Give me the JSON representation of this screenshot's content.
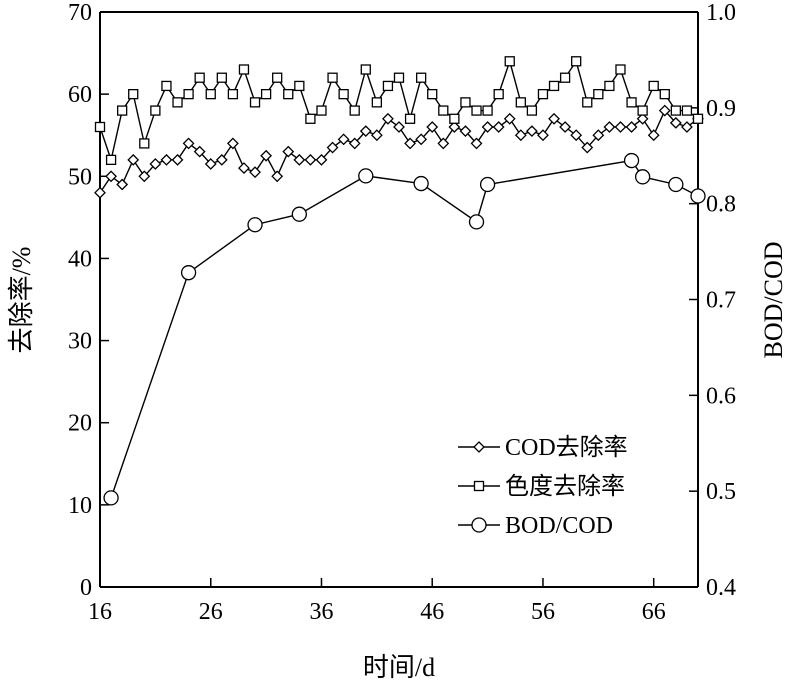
{
  "chart_data": {
    "type": "line",
    "xlabel": "时间/d",
    "ylabel": "去除率/%",
    "y2label": "BOD/COD",
    "xlim": [
      16,
      70
    ],
    "ylim": [
      0,
      70
    ],
    "y2lim": [
      0.4,
      1.0
    ],
    "xticks": [
      "16",
      "26",
      "36",
      "46",
      "56",
      "66"
    ],
    "yticks": [
      "0",
      "10",
      "20",
      "30",
      "40",
      "50",
      "60",
      "70"
    ],
    "y2ticks": [
      "0.4",
      "0.5",
      "0.6",
      "0.7",
      "0.8",
      "0.9",
      "1.0"
    ],
    "legend_position": "lower-right",
    "grid": false,
    "series": [
      {
        "name": "COD去除率",
        "axis": "left",
        "marker": "diamond",
        "points": [
          [
            16,
            48
          ],
          [
            17,
            50
          ],
          [
            18,
            49
          ],
          [
            19,
            52
          ],
          [
            20,
            50
          ],
          [
            21,
            51.5
          ],
          [
            22,
            52
          ],
          [
            23,
            52
          ],
          [
            24,
            54
          ],
          [
            25,
            53
          ],
          [
            26,
            51.5
          ],
          [
            27,
            52
          ],
          [
            28,
            54
          ],
          [
            29,
            51
          ],
          [
            30,
            50.5
          ],
          [
            31,
            52.5
          ],
          [
            32,
            50
          ],
          [
            33,
            53
          ],
          [
            34,
            52
          ],
          [
            35,
            52
          ],
          [
            36,
            52
          ],
          [
            37,
            53.5
          ],
          [
            38,
            54.5
          ],
          [
            39,
            54
          ],
          [
            40,
            55.5
          ],
          [
            41,
            55
          ],
          [
            42,
            57
          ],
          [
            43,
            56
          ],
          [
            44,
            54
          ],
          [
            45,
            54.5
          ],
          [
            46,
            56
          ],
          [
            47,
            54
          ],
          [
            48,
            56
          ],
          [
            49,
            55.5
          ],
          [
            50,
            54
          ],
          [
            51,
            56
          ],
          [
            52,
            56
          ],
          [
            53,
            57
          ],
          [
            54,
            55
          ],
          [
            55,
            55.5
          ],
          [
            56,
            55
          ],
          [
            57,
            57
          ],
          [
            58,
            56
          ],
          [
            59,
            55
          ],
          [
            60,
            53.5
          ],
          [
            61,
            55
          ],
          [
            62,
            56
          ],
          [
            63,
            56
          ],
          [
            64,
            56
          ],
          [
            65,
            57
          ],
          [
            66,
            55
          ],
          [
            67,
            58
          ],
          [
            68,
            56.5
          ],
          [
            69,
            56
          ],
          [
            70,
            57
          ]
        ]
      },
      {
        "name": "色度去除率",
        "axis": "left",
        "marker": "square",
        "points": [
          [
            16,
            56
          ],
          [
            17,
            52
          ],
          [
            18,
            58
          ],
          [
            19,
            60
          ],
          [
            20,
            54
          ],
          [
            21,
            58
          ],
          [
            22,
            61
          ],
          [
            23,
            59
          ],
          [
            24,
            60
          ],
          [
            25,
            62
          ],
          [
            26,
            60
          ],
          [
            27,
            62
          ],
          [
            28,
            60
          ],
          [
            29,
            63
          ],
          [
            30,
            59
          ],
          [
            31,
            60
          ],
          [
            32,
            62
          ],
          [
            33,
            60
          ],
          [
            34,
            61
          ],
          [
            35,
            57
          ],
          [
            36,
            58
          ],
          [
            37,
            62
          ],
          [
            38,
            60
          ],
          [
            39,
            58
          ],
          [
            40,
            63
          ],
          [
            41,
            59
          ],
          [
            42,
            61
          ],
          [
            43,
            62
          ],
          [
            44,
            57
          ],
          [
            45,
            62
          ],
          [
            46,
            60
          ],
          [
            47,
            58
          ],
          [
            48,
            57
          ],
          [
            49,
            59
          ],
          [
            50,
            58
          ],
          [
            51,
            58
          ],
          [
            52,
            60
          ],
          [
            53,
            64
          ],
          [
            54,
            59
          ],
          [
            55,
            58
          ],
          [
            56,
            60
          ],
          [
            57,
            61
          ],
          [
            58,
            62
          ],
          [
            59,
            64
          ],
          [
            60,
            59
          ],
          [
            61,
            60
          ],
          [
            62,
            61
          ],
          [
            63,
            63
          ],
          [
            64,
            59
          ],
          [
            65,
            58
          ],
          [
            66,
            61
          ],
          [
            67,
            60
          ],
          [
            68,
            58
          ],
          [
            69,
            58
          ],
          [
            70,
            57
          ]
        ]
      },
      {
        "name": "BOD/COD",
        "axis": "right",
        "marker": "circle",
        "points": [
          [
            17,
            0.493
          ],
          [
            24,
            0.728
          ],
          [
            30,
            0.778
          ],
          [
            34,
            0.789
          ],
          [
            40,
            0.829
          ],
          [
            45,
            0.821
          ],
          [
            50,
            0.781
          ],
          [
            51,
            0.82
          ],
          [
            64,
            0.845
          ],
          [
            65,
            0.828
          ],
          [
            68,
            0.82
          ],
          [
            70,
            0.808
          ]
        ]
      }
    ]
  }
}
